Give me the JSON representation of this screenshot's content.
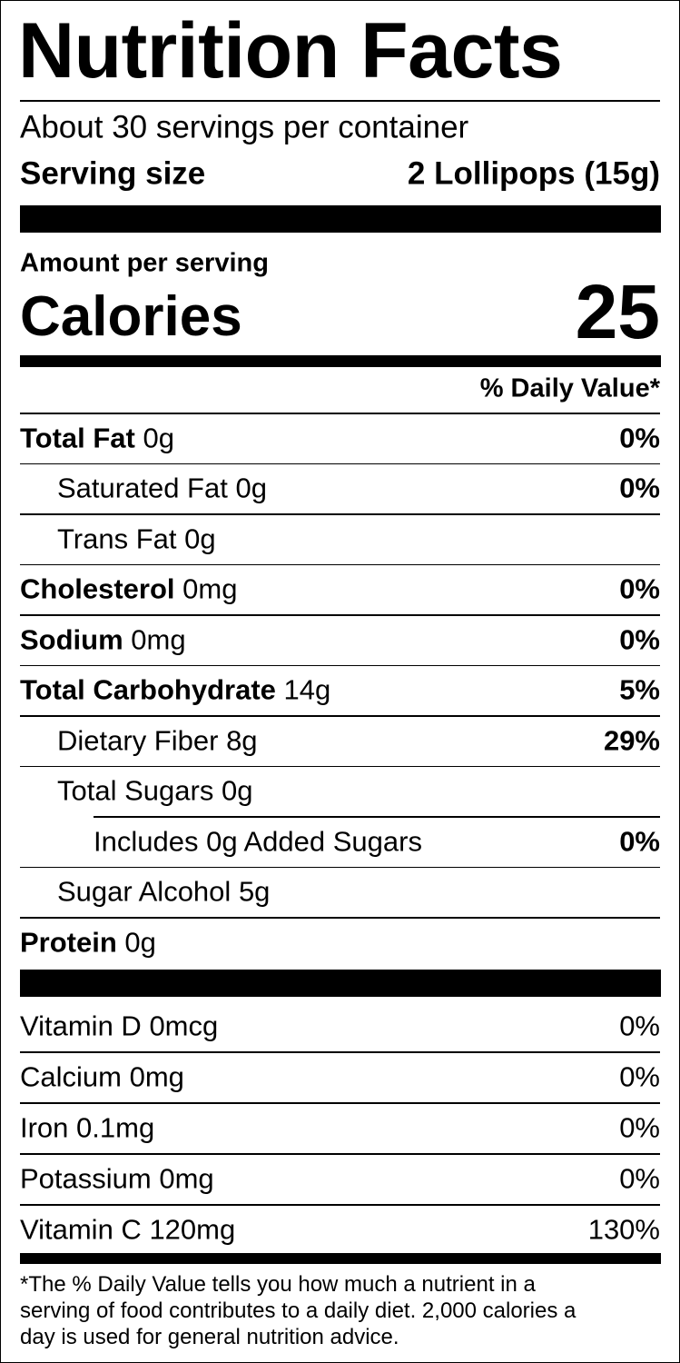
{
  "header": {
    "title": "Nutrition Facts",
    "servings": "About 30 servings per container",
    "serving_size_label": "Serving size",
    "serving_size_value": "2 Lollipops (15g)"
  },
  "calories": {
    "amount_label": "Amount per serving",
    "label": "Calories",
    "value": 25
  },
  "daily_value_header": "% Daily Value*",
  "nutrients": [
    {
      "name": "Total Fat",
      "amount": "0g",
      "dv": "0%"
    },
    {
      "name": "Saturated Fat",
      "amount": "0g",
      "dv": "0%"
    },
    {
      "name": "Trans Fat",
      "amount": "0g"
    },
    {
      "name": "Cholesterol",
      "amount": "0mg",
      "dv": "0%"
    },
    {
      "name": "Sodium",
      "amount": "0mg",
      "dv": "0%"
    },
    {
      "name": "Total Carbohydrate",
      "amount": "14g",
      "dv": "5%"
    },
    {
      "name": "Dietary Fiber",
      "amount": "8g",
      "dv": "29%"
    },
    {
      "name": "Total Sugars",
      "amount": "0g"
    },
    {
      "name": "Includes",
      "amount": "0g Added Sugars",
      "dv": "0%"
    },
    {
      "name": "Sugar Alcohol",
      "amount": "5g"
    },
    {
      "name": "Protein",
      "amount": "0g"
    }
  ],
  "vitamins": [
    {
      "name": "Vitamin D",
      "amount": "0mcg",
      "dv": "0%"
    },
    {
      "name": "Calcium",
      "amount": "0mg",
      "dv": "0%"
    },
    {
      "name": "Iron",
      "amount": "0.1mg",
      "dv": "0%"
    },
    {
      "name": "Potassium",
      "amount": "0mg",
      "dv": "0%"
    },
    {
      "name": "Vitamin C",
      "amount": "120mg",
      "dv": "130%"
    }
  ],
  "footnote": [
    "*The % Daily Value tells you how much a nutrient in a",
    "serving of food contributes to a daily diet. 2,000 calories a",
    "day is used for general nutrition advice."
  ]
}
